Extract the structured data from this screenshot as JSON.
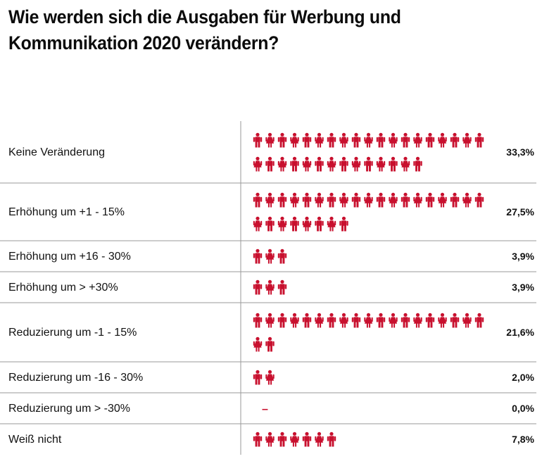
{
  "title": "Wie werden sich die Ausgaben für Werbung und Kommunikation 2020 verändern?",
  "colors": {
    "accent": "#c8102e",
    "divider": "#9a9a9a"
  },
  "icon": "person-icon",
  "zero_marker": "–",
  "chart_data": {
    "type": "bar",
    "style": "pictogram",
    "unit": "%",
    "categories": [
      "Keine Veränderung",
      "Erhöhung um +1 - 15%",
      "Erhöhung um +16 - 30%",
      "Erhöhung um > +30%",
      "Reduzierung um -1 - 15%",
      "Reduzierung um -16 - 30%",
      "Reduzierung um > -30%",
      "Weiß nicht"
    ],
    "values": [
      33.3,
      27.5,
      3.9,
      3.9,
      21.6,
      2.0,
      0.0,
      7.8
    ],
    "value_labels": [
      "33,3%",
      "27,5%",
      "3,9%",
      "3,9%",
      "21,6%",
      "2,0%",
      "0,0%",
      "7,8%"
    ],
    "icons_per_row": 19,
    "percent_per_icon": 1
  }
}
